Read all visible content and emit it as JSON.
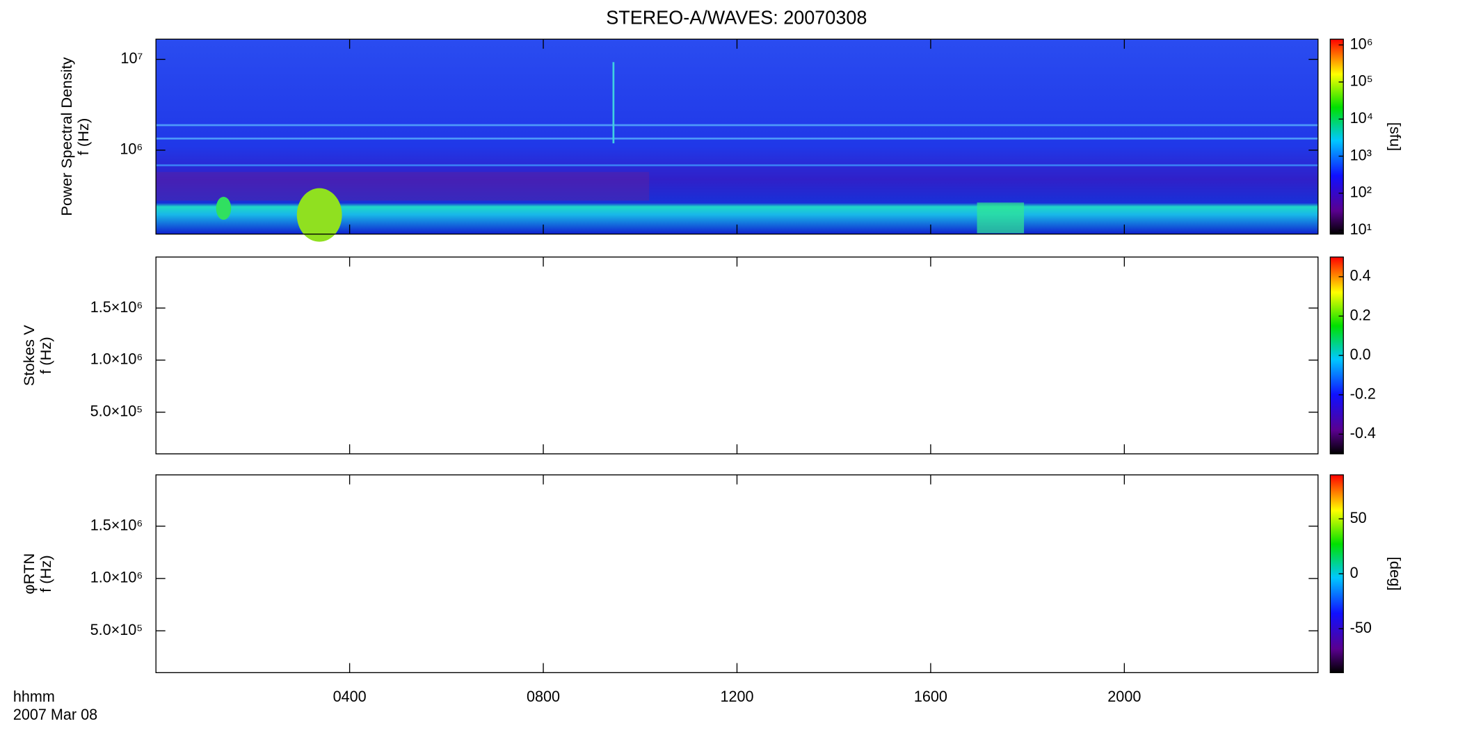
{
  "title": "STEREO-A/WAVES: 20070308",
  "chart_data": [
    {
      "type": "spectrogram",
      "ylabel": [
        "Power Spectral Density",
        "f (Hz)"
      ],
      "ylog": true,
      "ylim": [
        119000,
        16700000
      ],
      "yticks": [
        {
          "value": 1000000,
          "label": "10⁶"
        },
        {
          "value": 10000000,
          "label": "10⁷"
        }
      ],
      "colorbar": {
        "log": true,
        "lim": [
          7.9,
          1430000
        ],
        "ticks": [
          {
            "value": 10,
            "label": "10¹"
          },
          {
            "value": 100,
            "label": "10²"
          },
          {
            "value": 1000,
            "label": "10³"
          },
          {
            "value": 10000,
            "label": "10⁴"
          },
          {
            "value": 100000,
            "label": "10⁵"
          },
          {
            "value": 1000000,
            "label": "10⁶"
          }
        ],
        "label": "[sfu]"
      }
    },
    {
      "type": "spectrogram",
      "ylabel": [
        "Stokes V",
        "f (Hz)"
      ],
      "ylog": false,
      "ylim": [
        100000,
        1990000
      ],
      "yticks": [
        {
          "value": 500000,
          "label": "5.0×10⁵"
        },
        {
          "value": 1000000,
          "label": "1.0×10⁶"
        },
        {
          "value": 1500000,
          "label": "1.5×10⁶"
        }
      ],
      "colorbar": {
        "log": false,
        "lim": [
          -0.5,
          0.5
        ],
        "ticks": [
          {
            "value": -0.4,
            "label": "-0.4"
          },
          {
            "value": -0.2,
            "label": "-0.2"
          },
          {
            "value": 0,
            "label": "0.0"
          },
          {
            "value": 0.2,
            "label": "0.2"
          },
          {
            "value": 0.4,
            "label": "0.4"
          }
        ]
      }
    },
    {
      "type": "spectrogram",
      "ylabel": [
        "φRTN",
        "f (Hz)"
      ],
      "ylog": false,
      "ylim": [
        100000,
        1990000
      ],
      "yticks": [
        {
          "value": 500000,
          "label": "5.0×10⁵"
        },
        {
          "value": 1000000,
          "label": "1.0×10⁶"
        },
        {
          "value": 1500000,
          "label": "1.5×10⁶"
        }
      ],
      "colorbar": {
        "log": false,
        "lim": [
          -90,
          90
        ],
        "ticks": [
          -50,
          0,
          50
        ],
        "label": "[deg]"
      },
      "xlim": [
        0,
        24
      ],
      "xticks": [
        {
          "value": 4,
          "label": "0400"
        },
        {
          "value": 8,
          "label": "0800"
        },
        {
          "value": 12,
          "label": "1200"
        },
        {
          "value": 16,
          "label": "1600"
        },
        {
          "value": 20,
          "label": "2000"
        }
      ],
      "xlabel": [
        "hhmm",
        "2007 Mar 08"
      ]
    }
  ]
}
